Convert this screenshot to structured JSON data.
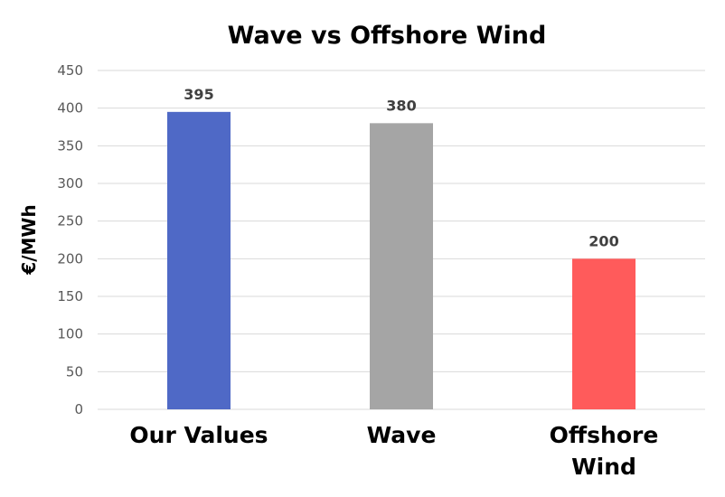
{
  "chart_data": {
    "type": "bar",
    "title": "Wave vs Offshore Wind",
    "xlabel": "",
    "ylabel": "€/MWh",
    "categories": [
      "Our Values",
      "Wave",
      "Offshore Wind"
    ],
    "values": [
      395,
      380,
      200
    ],
    "data_labels": [
      "395",
      "380",
      "200"
    ],
    "colors": [
      "#4F69C6",
      "#A5A5A5",
      "#FF5B5B"
    ],
    "ylim": [
      0,
      450
    ],
    "yticks": [
      0,
      50,
      100,
      150,
      200,
      250,
      300,
      350,
      400,
      450
    ],
    "ytick_labels": [
      "0",
      "50",
      "100",
      "150",
      "200",
      "250",
      "300",
      "350",
      "400",
      "450"
    ],
    "grid": true,
    "legend": "none"
  }
}
